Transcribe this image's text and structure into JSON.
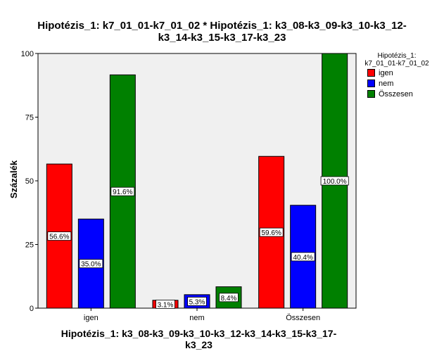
{
  "chart_data": {
    "type": "bar",
    "title_lines": [
      "Hipotézis_1: k7_01_01-k7_01_02 * Hipotézis_1: k3_08-k3_09-k3_10-k3_12-",
      "k3_14-k3_15-k3_17-k3_23"
    ],
    "xlabel_lines": [
      "Hipotézis_1: k3_08-k3_09-k3_10-k3_12-k3_14-k3_15-k3_17-",
      "k3_23"
    ],
    "ylabel": "Százalék",
    "categories": [
      "igen",
      "nem",
      "Összesen"
    ],
    "ylim": [
      0,
      100
    ],
    "yticks": [
      "0",
      "25",
      "50",
      "75",
      "100"
    ],
    "legend_title_lines": [
      "Hipotézis_1:",
      "k7_01_01-k7_01_02"
    ],
    "legend_position": "right",
    "series": [
      {
        "name": "igen",
        "color": "#ff0000",
        "values": [
          56.6,
          3.1,
          59.6
        ],
        "labels": [
          "56.6%",
          "3.1%",
          "59.6%"
        ]
      },
      {
        "name": "nem",
        "color": "#0000ff",
        "values": [
          35.0,
          5.3,
          40.4
        ],
        "labels": [
          "35.0%",
          "5.3%",
          "40.4%"
        ]
      },
      {
        "name": "Összesen",
        "color": "#008000",
        "values": [
          91.6,
          8.4,
          100.0
        ],
        "labels": [
          "91.6%",
          "8.4%",
          "100.0%"
        ]
      }
    ],
    "plot_background": "#f0f0f0",
    "grid": false
  }
}
